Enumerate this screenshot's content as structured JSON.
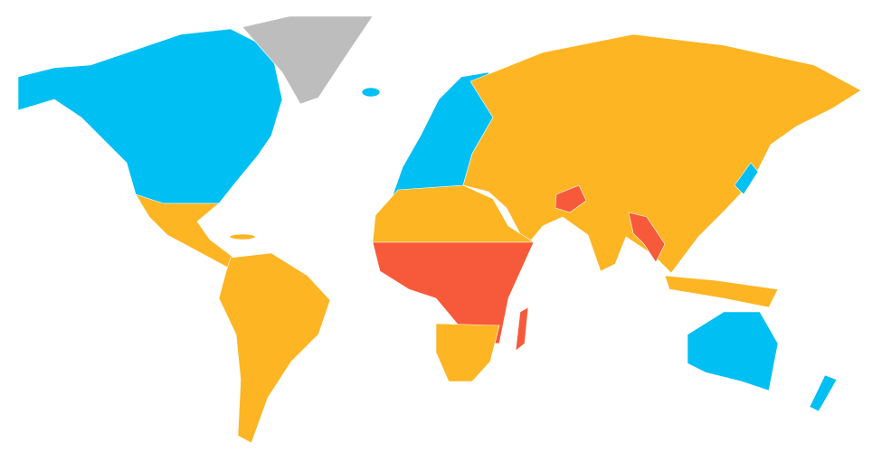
{
  "map": {
    "palette": [
      "#00bff3",
      "#fdb524",
      "#f75a3a",
      "#bdbdbd"
    ]
  }
}
